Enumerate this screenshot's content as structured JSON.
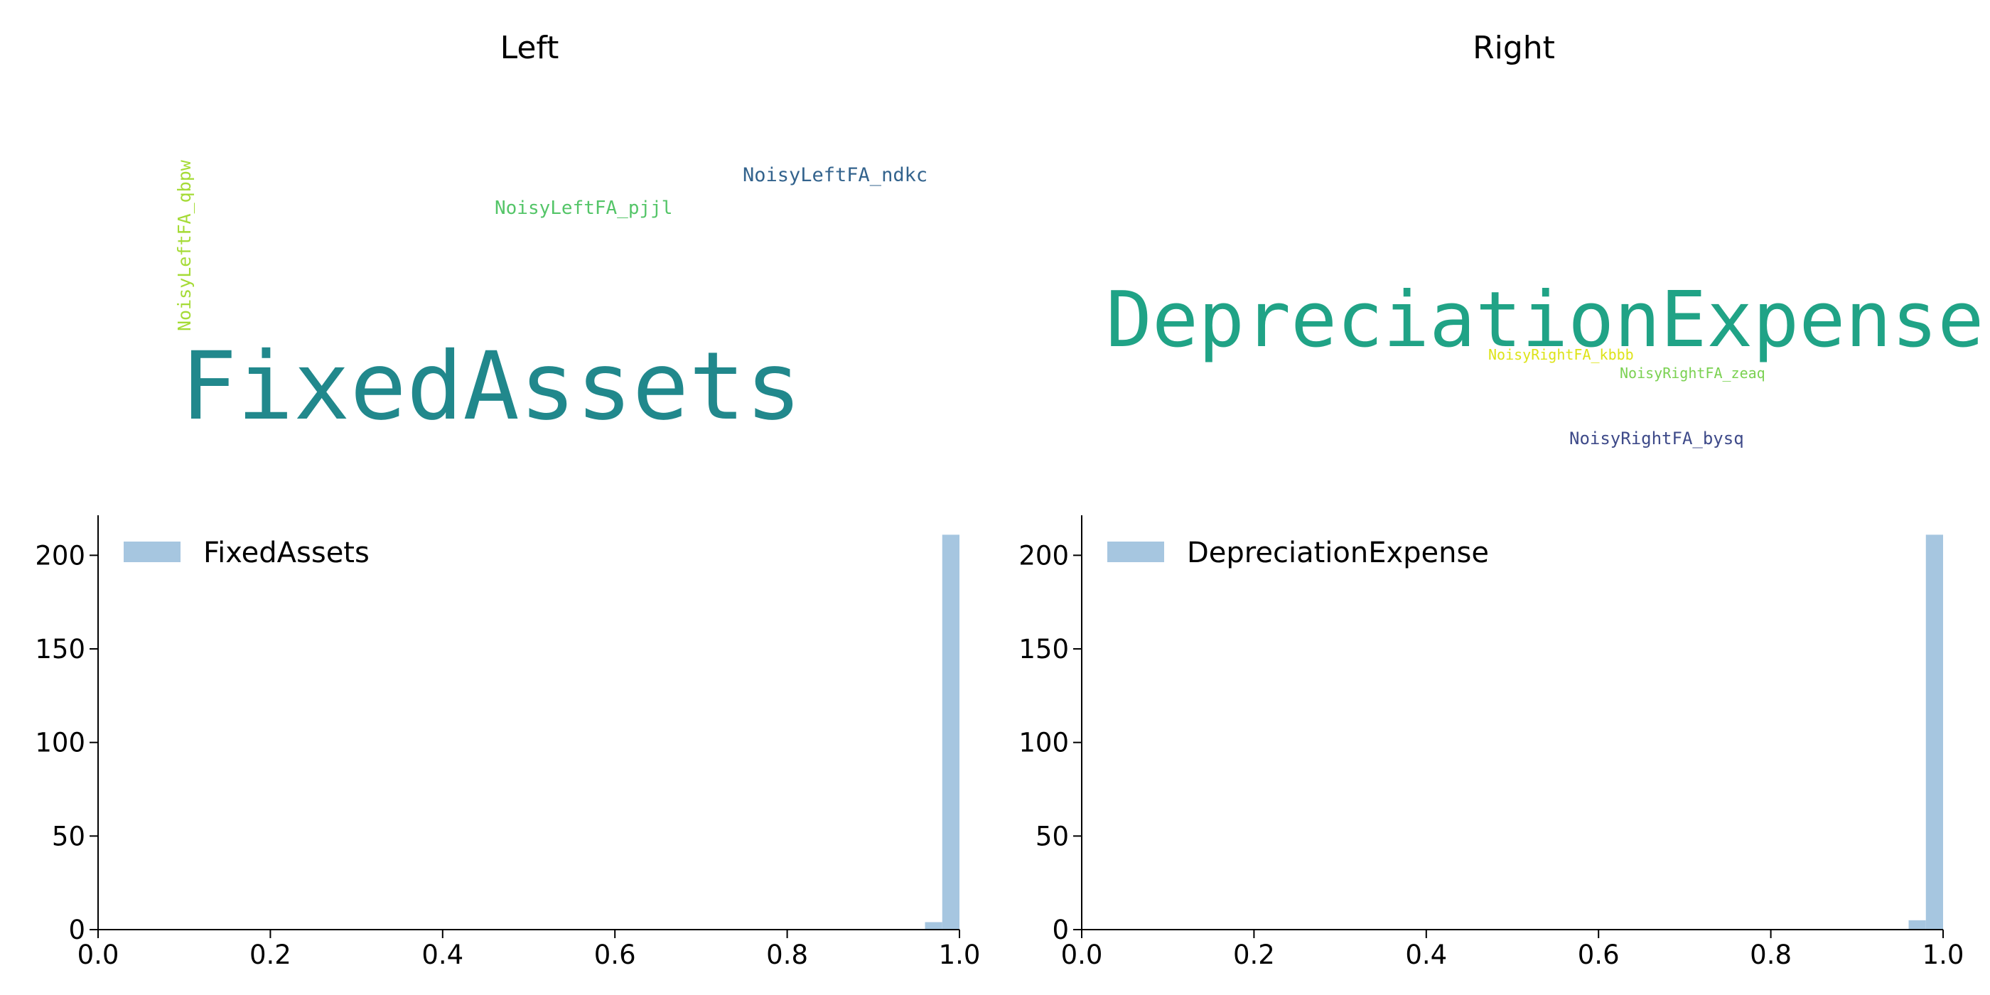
{
  "panels": [
    {
      "title": "Left",
      "cloud": [
        {
          "text": "NoisyLeftFA_qbpw",
          "color": "#a5db36",
          "size": 25,
          "vertical": true
        },
        {
          "text": "NoisyLeftFA_pjjl",
          "color": "#54c568",
          "size": 26,
          "vertical": false
        },
        {
          "text": "NoisyLeftFA_ndkc",
          "color": "#33638d",
          "size": 27,
          "vertical": false
        },
        {
          "text": "FixedAssets",
          "color": "#21888c",
          "size": 132,
          "vertical": false
        }
      ]
    },
    {
      "title": "Right",
      "cloud": [
        {
          "text": "DepreciationExpense",
          "color": "#20a386",
          "size": 108,
          "vertical": false
        },
        {
          "text": "NoisyRightFA_kbbb",
          "color": "#dde318",
          "size": 20,
          "vertical": false
        },
        {
          "text": "NoisyRightFA_zeaq",
          "color": "#7ad151",
          "size": 20,
          "vertical": false
        },
        {
          "text": "NoisyRightFA_bysq",
          "color": "#3e4a89",
          "size": 24,
          "vertical": false
        }
      ]
    }
  ],
  "chart_data": [
    {
      "type": "bar",
      "legend": "FixedAssets",
      "legend_position": "top-left",
      "bar_color": "#a6c6e0",
      "bins": [
        {
          "x0": 0.96,
          "x1": 0.98,
          "count": 4
        },
        {
          "x0": 0.98,
          "x1": 1.0,
          "count": 211
        }
      ],
      "xlim": [
        0.0,
        1.0
      ],
      "ylim": [
        0,
        222
      ],
      "xticks": [
        "0.0",
        "0.2",
        "0.4",
        "0.6",
        "0.8",
        "1.0"
      ],
      "yticks": [
        "0",
        "50",
        "100",
        "150",
        "200"
      ],
      "grid": false
    },
    {
      "type": "bar",
      "legend": "DepreciationExpense",
      "legend_position": "top-left",
      "bar_color": "#a6c6e0",
      "bins": [
        {
          "x0": 0.96,
          "x1": 0.98,
          "count": 5
        },
        {
          "x0": 0.98,
          "x1": 1.0,
          "count": 211
        }
      ],
      "xlim": [
        0.0,
        1.0
      ],
      "ylim": [
        0,
        222
      ],
      "xticks": [
        "0.0",
        "0.2",
        "0.4",
        "0.6",
        "0.8",
        "1.0"
      ],
      "yticks": [
        "0",
        "50",
        "100",
        "150",
        "200"
      ],
      "grid": false
    }
  ]
}
